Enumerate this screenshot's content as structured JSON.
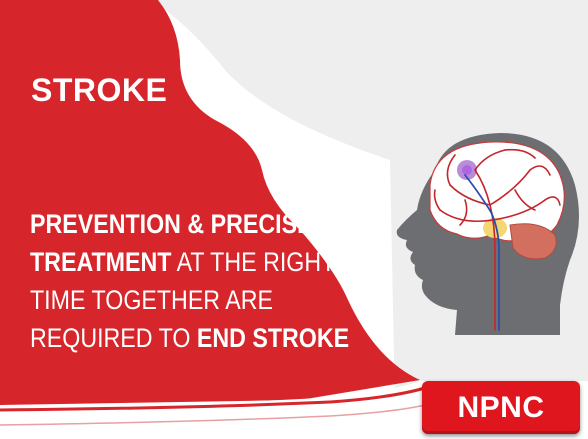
{
  "title": "STROKE",
  "message": {
    "line1": {
      "bold": "PREVENTION & PRECISE",
      "rest": ""
    },
    "line2": {
      "bold": "TREATMENT",
      "rest": " AT THE RIGHT"
    },
    "line3": {
      "text": "TIME TOGETHER ARE"
    },
    "line4": {
      "text": "REQUIRED TO ",
      "bold": "END STROKE"
    }
  },
  "badge": "NPNC",
  "colors": {
    "red": "#d6262b",
    "badge_red": "#e0161f",
    "panel_gray": "#eeeeef",
    "head_gray": "#6c6e71"
  },
  "illustration": "human-head-brain-vessels-icon"
}
